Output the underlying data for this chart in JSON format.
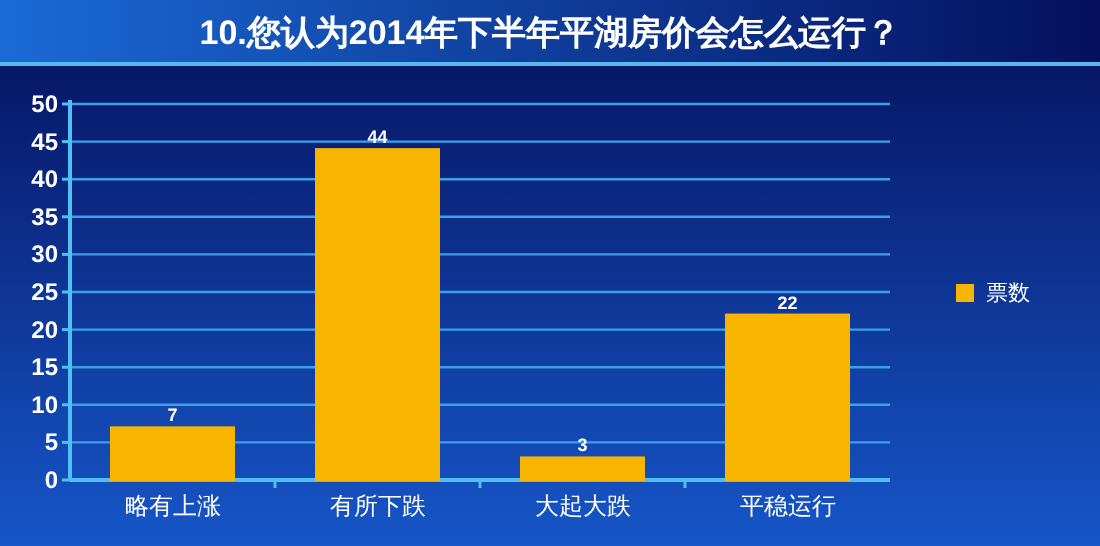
{
  "chart_data": {
    "type": "bar",
    "title": "10.您认为2014年下半年平湖房价会怎么运行？",
    "categories": [
      "略有上涨",
      "有所下跌",
      "大起大跌",
      "平稳运行"
    ],
    "series": [
      {
        "name": "票数",
        "color": "#f7b500",
        "values": [
          7,
          44,
          3,
          22
        ]
      }
    ],
    "ylim": [
      0,
      50
    ],
    "yticks": [
      0,
      5,
      10,
      15,
      20,
      25,
      30,
      35,
      40,
      45,
      50
    ],
    "grid": "y",
    "legend": "right",
    "data_labels": true
  }
}
